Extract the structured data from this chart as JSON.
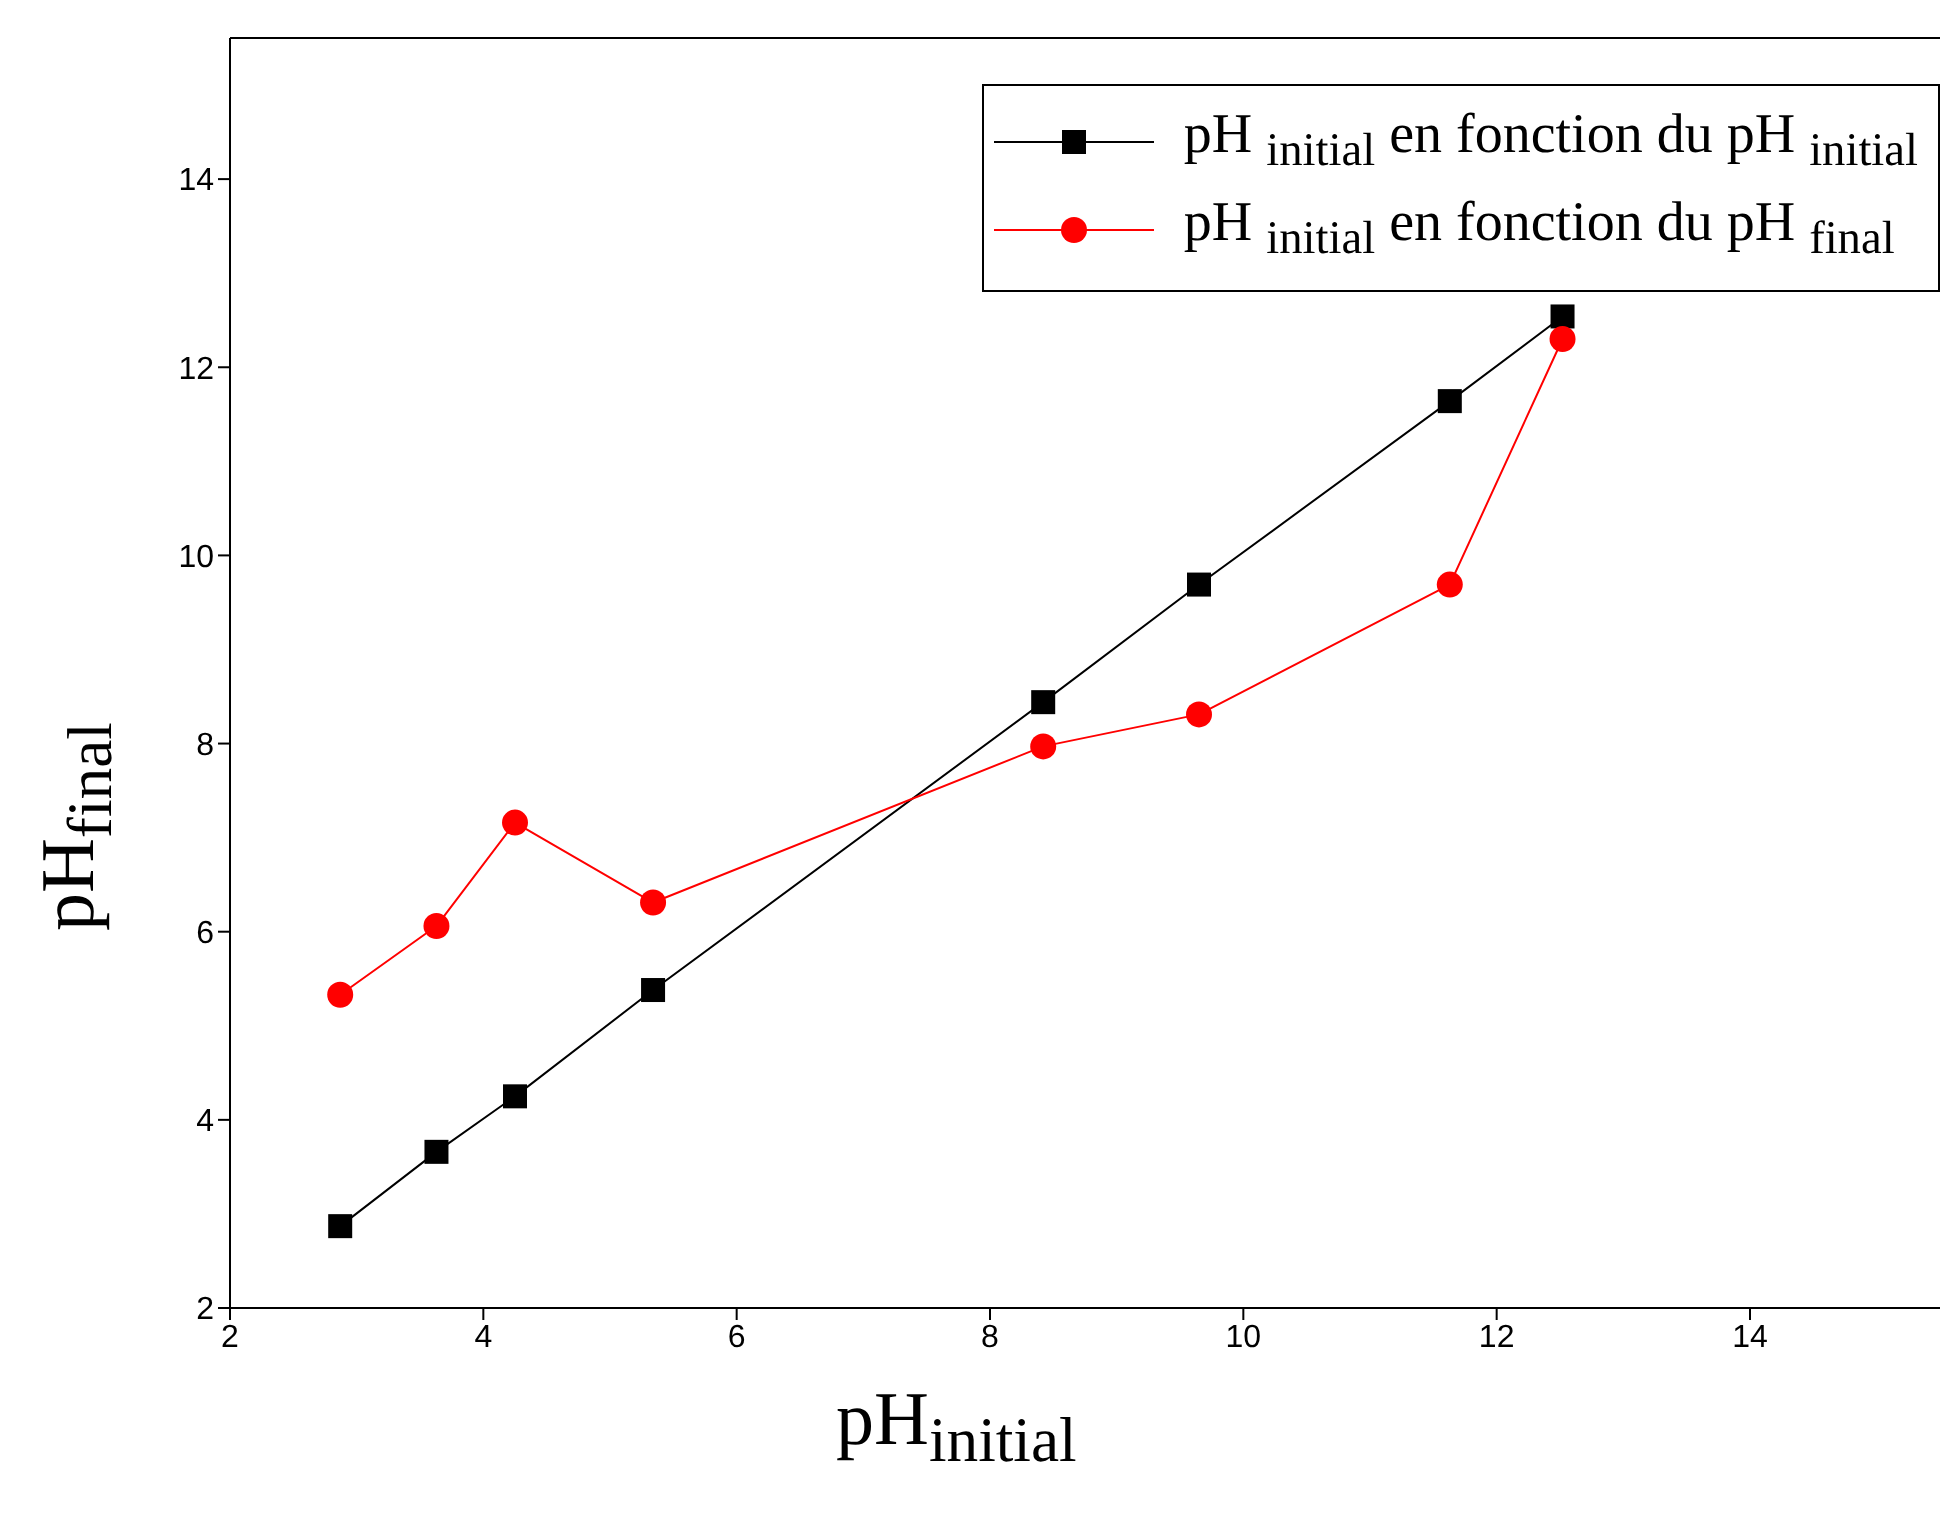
{
  "chart_data": {
    "type": "line",
    "xlabel": "pH$_{initial}$",
    "ylabel": "pH$_{final}$",
    "xlim": [
      2,
      15.5
    ],
    "xticks": [
      2,
      4,
      6,
      8,
      10,
      12,
      14
    ],
    "ylim": [
      2,
      15.5
    ],
    "yticks": [
      2,
      4,
      6,
      8,
      10,
      12,
      14
    ],
    "grid": false,
    "legend": "top right",
    "line_style": "solid",
    "x": [
      2.87,
      3.63,
      4.25,
      5.34,
      8.42,
      9.65,
      11.63,
      12.52
    ],
    "series": [
      {
        "name": "pH $_{initial}$ en fonction du pH $_{initial}$",
        "color": "#000000",
        "marker": "square",
        "values": [
          2.87,
          3.66,
          4.25,
          5.38,
          8.44,
          9.69,
          11.64,
          12.54
        ]
      },
      {
        "name": "pH $_{initial}$ en fonction du pH $_{final}$",
        "color": "#ff0000",
        "marker": "circle",
        "values": [
          5.33,
          6.06,
          7.16,
          6.31,
          7.97,
          8.31,
          9.69,
          12.3
        ]
      }
    ]
  }
}
